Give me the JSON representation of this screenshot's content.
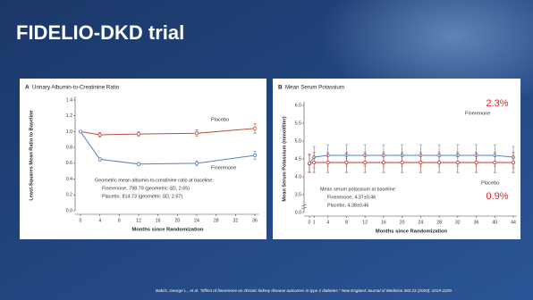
{
  "title": "FIDELIO-DKD trial",
  "citation": "Bakris, George L., et al. \"Effect of finerenone on chronic kidney disease outcomes in type 2 diabetes.\" New England Journal of Medicine 383.23 (2020): 2219-2229.",
  "chart_data": [
    {
      "type": "line",
      "label": "A",
      "title": "Urinary Albumin-to-Creatinine Ratio",
      "ylabel": "Least-Squares Mean Ratio to Baseline",
      "xlabel": "Months since Randomization",
      "xlim": [
        0,
        36
      ],
      "xticks": [
        0,
        4,
        8,
        12,
        16,
        20,
        24,
        28,
        32,
        36
      ],
      "ylim": [
        0,
        1.4
      ],
      "yticks": [
        {
          "value": 0,
          "label": "0.0"
        },
        0.2,
        0.4,
        0.6,
        0.8,
        {
          "value": 1,
          "label": "1.0"
        },
        1.2,
        1.4
      ],
      "series": [
        {
          "name": "Placebo",
          "color": "#b5523b",
          "x": [
            0,
            4,
            12,
            24,
            36
          ],
          "values": [
            1.0,
            0.96,
            0.97,
            0.98,
            1.04
          ],
          "errors": [
            0,
            0.03,
            0.03,
            0.04,
            0.06
          ]
        },
        {
          "name": "Finerenone",
          "color": "#5a7fb8",
          "x": [
            0,
            4,
            12,
            24,
            36
          ],
          "values": [
            1.0,
            0.65,
            0.59,
            0.6,
            0.7
          ],
          "errors": [
            0,
            0.02,
            0.02,
            0.03,
            0.05
          ]
        }
      ],
      "annotations": [
        "Geometric mean albumin-to-creatinine ratio at baseline:",
        "Finerenone, 798.79 (geometric SD, 2.65)",
        "Placebo, 814.73 (geometric SD, 2.67)"
      ]
    },
    {
      "type": "line",
      "label": "B",
      "title": "Mean Serum Potassium",
      "ylabel": "Mean Serum Potassium (mmol/liter)",
      "xlabel": "Months since Randomization",
      "xlim": [
        0,
        44
      ],
      "xticks": [
        0,
        1,
        4,
        8,
        12,
        16,
        20,
        24,
        28,
        32,
        36,
        40,
        44
      ],
      "ylim": [
        3.3,
        6.0
      ],
      "axis_break": true,
      "yticks": [
        {
          "value": 0,
          "label": "0.0"
        },
        3.5,
        {
          "value": 4,
          "label": "4.0"
        },
        4.5,
        {
          "value": 5,
          "label": "5.0"
        },
        5.5,
        {
          "value": 6,
          "label": "6.0"
        }
      ],
      "series": [
        {
          "name": "Finerenone",
          "color": "#5a7fb8",
          "x": [
            0,
            1,
            4,
            8,
            12,
            16,
            20,
            24,
            28,
            32,
            36,
            40,
            44
          ],
          "values": [
            4.37,
            4.55,
            4.6,
            4.6,
            4.6,
            4.6,
            4.6,
            4.6,
            4.6,
            4.6,
            4.6,
            4.6,
            4.55
          ],
          "errors": [
            0.25,
            0.3,
            0.3,
            0.3,
            0.3,
            0.3,
            0.3,
            0.3,
            0.3,
            0.3,
            0.3,
            0.3,
            0.3
          ]
        },
        {
          "name": "Placebo",
          "color": "#c0392b",
          "x": [
            0,
            1,
            4,
            8,
            12,
            16,
            20,
            24,
            28,
            32,
            36,
            40,
            44
          ],
          "values": [
            4.38,
            4.4,
            4.4,
            4.4,
            4.4,
            4.4,
            4.4,
            4.4,
            4.4,
            4.4,
            4.4,
            4.4,
            4.4
          ],
          "errors": [
            0.25,
            0.28,
            0.28,
            0.28,
            0.28,
            0.28,
            0.28,
            0.28,
            0.28,
            0.28,
            0.28,
            0.28,
            0.28
          ]
        }
      ],
      "annotations": [
        "Mean serum potassium at baseline:",
        "Finerenone, 4.37±0.46",
        "Placebo, 4.38±0.46"
      ],
      "callouts": [
        {
          "text": "2.3%",
          "color": "#e8231f"
        },
        {
          "text": "0.9%",
          "color": "#e8231f"
        }
      ]
    }
  ]
}
